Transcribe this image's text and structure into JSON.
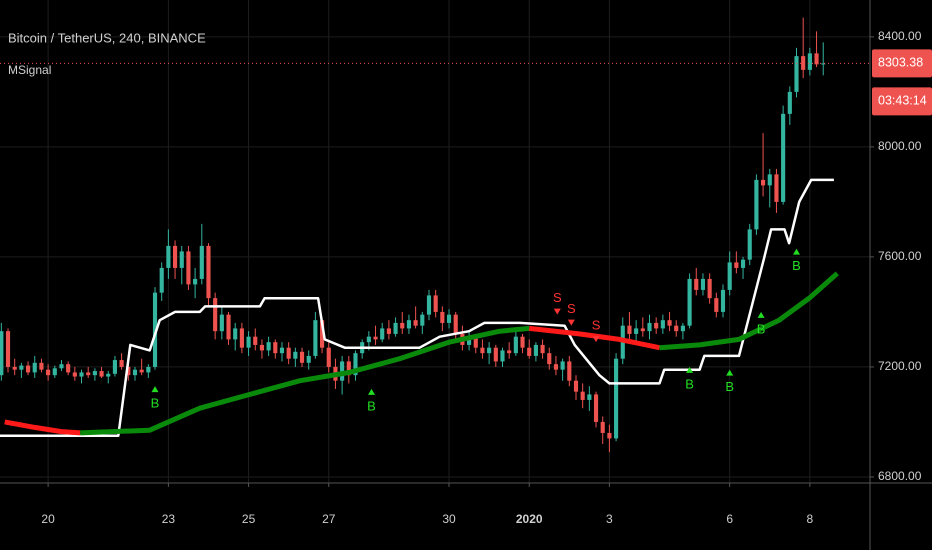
{
  "chart_data": {
    "type": "candlestick",
    "title": "Bitcoin / TetherUS, 240, BINANCE",
    "subtitle": "MSignal",
    "up_color": "#33b5a0",
    "down_color": "#ef5350",
    "grid": true,
    "xlim": [
      -0.2,
      130
    ],
    "ylim": [
      6778,
      8534
    ],
    "xticks": [
      {
        "value": 7,
        "label": "20"
      },
      {
        "value": 25,
        "label": "23"
      },
      {
        "value": 37,
        "label": "25"
      },
      {
        "value": 49,
        "label": "27"
      },
      {
        "value": 67,
        "label": "30"
      },
      {
        "value": 79,
        "label": "2020",
        "bold": true
      },
      {
        "value": 91,
        "label": "3"
      },
      {
        "value": 109,
        "label": "6"
      },
      {
        "value": 121,
        "label": "8"
      }
    ],
    "yticks": [
      {
        "value": 6800,
        "label": "6800.00"
      },
      {
        "value": 7200,
        "label": "7200.00"
      },
      {
        "value": 7600,
        "label": "7600.00"
      },
      {
        "value": 8000,
        "label": "8000.00"
      },
      {
        "value": 8400,
        "label": "8400.00"
      }
    ],
    "last_price": 8303.38,
    "last_price_color": "#ef5350",
    "countdown": "03:43:14",
    "candles": [
      [
        7170,
        7360,
        7150,
        7330
      ],
      [
        7330,
        7340,
        7180,
        7200
      ],
      [
        7200,
        7230,
        7170,
        7190
      ],
      [
        7190,
        7215,
        7160,
        7205
      ],
      [
        7205,
        7220,
        7170,
        7180
      ],
      [
        7180,
        7240,
        7160,
        7215
      ],
      [
        7215,
        7230,
        7180,
        7190
      ],
      [
        7190,
        7210,
        7150,
        7170
      ],
      [
        7170,
        7205,
        7160,
        7195
      ],
      [
        7195,
        7225,
        7185,
        7210
      ],
      [
        7210,
        7220,
        7170,
        7180
      ],
      [
        7180,
        7200,
        7150,
        7165
      ],
      [
        7165,
        7190,
        7140,
        7180
      ],
      [
        7180,
        7200,
        7160,
        7170
      ],
      [
        7170,
        7195,
        7150,
        7185
      ],
      [
        7185,
        7200,
        7160,
        7165
      ],
      [
        7165,
        7185,
        7140,
        7175
      ],
      [
        7175,
        7240,
        7165,
        7225
      ],
      [
        7225,
        7250,
        7190,
        7200
      ],
      [
        7200,
        7215,
        7150,
        7170
      ],
      [
        7170,
        7200,
        7150,
        7190
      ],
      [
        7190,
        7230,
        7170,
        7180
      ],
      [
        7180,
        7210,
        7160,
        7200
      ],
      [
        7200,
        7490,
        7190,
        7470
      ],
      [
        7470,
        7580,
        7440,
        7560
      ],
      [
        7560,
        7700,
        7520,
        7640
      ],
      [
        7640,
        7660,
        7520,
        7560
      ],
      [
        7560,
        7640,
        7500,
        7620
      ],
      [
        7620,
        7640,
        7480,
        7500
      ],
      [
        7500,
        7560,
        7450,
        7520
      ],
      [
        7520,
        7720,
        7500,
        7640
      ],
      [
        7640,
        7650,
        7420,
        7450
      ],
      [
        7450,
        7470,
        7300,
        7330
      ],
      [
        7330,
        7420,
        7300,
        7390
      ],
      [
        7390,
        7400,
        7280,
        7300
      ],
      [
        7300,
        7360,
        7260,
        7340
      ],
      [
        7340,
        7360,
        7250,
        7270
      ],
      [
        7270,
        7330,
        7240,
        7310
      ],
      [
        7310,
        7340,
        7260,
        7280
      ],
      [
        7280,
        7300,
        7230,
        7260
      ],
      [
        7260,
        7310,
        7240,
        7290
      ],
      [
        7290,
        7300,
        7230,
        7250
      ],
      [
        7250,
        7290,
        7220,
        7270
      ],
      [
        7270,
        7290,
        7210,
        7230
      ],
      [
        7230,
        7270,
        7200,
        7255
      ],
      [
        7255,
        7270,
        7200,
        7215
      ],
      [
        7215,
        7260,
        7190,
        7240
      ],
      [
        7240,
        7400,
        7230,
        7370
      ],
      [
        7370,
        7380,
        7250,
        7270
      ],
      [
        7270,
        7290,
        7180,
        7200
      ],
      [
        7200,
        7230,
        7120,
        7150
      ],
      [
        7150,
        7240,
        7100,
        7220
      ],
      [
        7220,
        7240,
        7140,
        7170
      ],
      [
        7170,
        7260,
        7150,
        7250
      ],
      [
        7250,
        7300,
        7230,
        7290
      ],
      [
        7290,
        7330,
        7260,
        7310
      ],
      [
        7310,
        7350,
        7280,
        7300
      ],
      [
        7300,
        7360,
        7290,
        7340
      ],
      [
        7340,
        7370,
        7300,
        7320
      ],
      [
        7320,
        7380,
        7310,
        7360
      ],
      [
        7360,
        7400,
        7320,
        7340
      ],
      [
        7340,
        7390,
        7320,
        7370
      ],
      [
        7370,
        7420,
        7340,
        7350
      ],
      [
        7350,
        7400,
        7320,
        7390
      ],
      [
        7390,
        7480,
        7370,
        7460
      ],
      [
        7460,
        7480,
        7380,
        7400
      ],
      [
        7400,
        7420,
        7330,
        7360
      ],
      [
        7360,
        7410,
        7340,
        7390
      ],
      [
        7390,
        7400,
        7300,
        7320
      ],
      [
        7320,
        7350,
        7260,
        7280
      ],
      [
        7280,
        7330,
        7260,
        7310
      ],
      [
        7310,
        7320,
        7250,
        7270
      ],
      [
        7270,
        7300,
        7230,
        7250
      ],
      [
        7250,
        7290,
        7210,
        7270
      ],
      [
        7270,
        7280,
        7200,
        7220
      ],
      [
        7220,
        7270,
        7200,
        7260
      ],
      [
        7260,
        7290,
        7230,
        7250
      ],
      [
        7250,
        7330,
        7240,
        7310
      ],
      [
        7310,
        7320,
        7250,
        7270
      ],
      [
        7270,
        7300,
        7230,
        7240
      ],
      [
        7240,
        7290,
        7220,
        7280
      ],
      [
        7280,
        7300,
        7230,
        7250
      ],
      [
        7250,
        7270,
        7190,
        7210
      ],
      [
        7210,
        7240,
        7170,
        7190
      ],
      [
        7190,
        7230,
        7150,
        7220
      ],
      [
        7220,
        7240,
        7130,
        7150
      ],
      [
        7150,
        7170,
        7080,
        7110
      ],
      [
        7110,
        7140,
        7050,
        7080
      ],
      [
        7080,
        7130,
        7040,
        7100
      ],
      [
        7100,
        7110,
        6980,
        7000
      ],
      [
        7000,
        7020,
        6920,
        6960
      ],
      [
        6960,
        6990,
        6890,
        6940
      ],
      [
        6940,
        7250,
        6930,
        7230
      ],
      [
        7230,
        7380,
        7210,
        7350
      ],
      [
        7350,
        7400,
        7300,
        7320
      ],
      [
        7320,
        7370,
        7290,
        7340
      ],
      [
        7340,
        7380,
        7310,
        7330
      ],
      [
        7330,
        7390,
        7300,
        7360
      ],
      [
        7360,
        7380,
        7320,
        7340
      ],
      [
        7340,
        7390,
        7320,
        7370
      ],
      [
        7370,
        7400,
        7330,
        7350
      ],
      [
        7350,
        7370,
        7310,
        7330
      ],
      [
        7330,
        7360,
        7300,
        7350
      ],
      [
        7350,
        7540,
        7340,
        7520
      ],
      [
        7520,
        7560,
        7460,
        7480
      ],
      [
        7480,
        7540,
        7460,
        7520
      ],
      [
        7520,
        7540,
        7430,
        7450
      ],
      [
        7450,
        7470,
        7380,
        7400
      ],
      [
        7400,
        7500,
        7380,
        7480
      ],
      [
        7480,
        7620,
        7460,
        7580
      ],
      [
        7580,
        7620,
        7540,
        7560
      ],
      [
        7560,
        7600,
        7520,
        7590
      ],
      [
        7590,
        7720,
        7570,
        7700
      ],
      [
        7700,
        7900,
        7680,
        7880
      ],
      [
        7880,
        8050,
        7820,
        7860
      ],
      [
        7860,
        7920,
        7780,
        7900
      ],
      [
        7900,
        7920,
        7760,
        7800
      ],
      [
        7800,
        8150,
        7790,
        8120
      ],
      [
        8120,
        8220,
        8080,
        8200
      ],
      [
        8200,
        8360,
        8180,
        8330
      ],
      [
        8330,
        8470,
        8250,
        8280
      ],
      [
        8280,
        8360,
        8260,
        8340
      ],
      [
        8340,
        8420,
        8290,
        8300
      ],
      [
        8300,
        8380,
        8260,
        8303.38
      ]
    ],
    "overlays": [
      {
        "color": "#ffffff",
        "width": 2.5,
        "x": [
          -0.2,
          17.5,
          19.3,
          22.2,
          23.7,
          26,
          29.7,
          30.5,
          38.7,
          39.4,
          47.4,
          48.4,
          51.4,
          62.6,
          65.6,
          70,
          72.3,
          77.6,
          84.3,
          85.8,
          89.5,
          91,
          98.5,
          99.2,
          104.5,
          105.2,
          110.4,
          114.2,
          115.2,
          117.2,
          117.9,
          119.4,
          121.2,
          124.6
        ],
        "values": [
          6950,
          6950,
          7280,
          7260,
          7370,
          7400,
          7400,
          7420,
          7420,
          7450,
          7450,
          7300,
          7270,
          7270,
          7310,
          7330,
          7360,
          7360,
          7350,
          7280,
          7170,
          7140,
          7140,
          7190,
          7190,
          7240,
          7240,
          7600,
          7700,
          7700,
          7650,
          7800,
          7880,
          7880
        ]
      },
      {
        "color": "#ff1a1a",
        "width": 5,
        "x": [
          0.5,
          5,
          9,
          11.8
        ],
        "values": [
          7000,
          6980,
          6965,
          6960
        ]
      },
      {
        "color": "#0a8a0a",
        "width": 5,
        "x": [
          11.8,
          22.2,
          29.7,
          37.2,
          44.7,
          52.1,
          59.6,
          67,
          74.6,
          79
        ],
        "values": [
          6960,
          6970,
          7050,
          7100,
          7150,
          7180,
          7230,
          7290,
          7330,
          7340
        ]
      },
      {
        "color": "#ff1a1a",
        "width": 5,
        "x": [
          79,
          86.5,
          92.5,
          98.5
        ],
        "values": [
          7340,
          7320,
          7300,
          7270
        ]
      },
      {
        "color": "#0a8a0a",
        "width": 5,
        "x": [
          98.5,
          104.5,
          110.4,
          116.4,
          120.9,
          125.1
        ],
        "values": [
          7270,
          7280,
          7300,
          7370,
          7450,
          7540
        ]
      }
    ],
    "signals": [
      {
        "text": "B",
        "x": 23,
        "y": 7130,
        "color": "#22dd22",
        "side": "below"
      },
      {
        "text": "B",
        "x": 55.4,
        "y": 7120,
        "color": "#22dd22",
        "side": "below"
      },
      {
        "text": "S",
        "x": 83.2,
        "y": 7390,
        "color": "#ff3333",
        "side": "above"
      },
      {
        "text": "S",
        "x": 85.3,
        "y": 7350,
        "color": "#ff3333",
        "side": "above"
      },
      {
        "text": "S",
        "x": 89,
        "y": 7290,
        "color": "#ff3333",
        "side": "above"
      },
      {
        "text": "B",
        "x": 103,
        "y": 7200,
        "color": "#22dd22",
        "side": "below"
      },
      {
        "text": "B",
        "x": 109,
        "y": 7190,
        "color": "#22dd22",
        "side": "below"
      },
      {
        "text": "B",
        "x": 113.7,
        "y": 7400,
        "color": "#22dd22",
        "side": "below"
      },
      {
        "text": "B",
        "x": 119,
        "y": 7630,
        "color": "#22dd22",
        "side": "below"
      }
    ]
  }
}
